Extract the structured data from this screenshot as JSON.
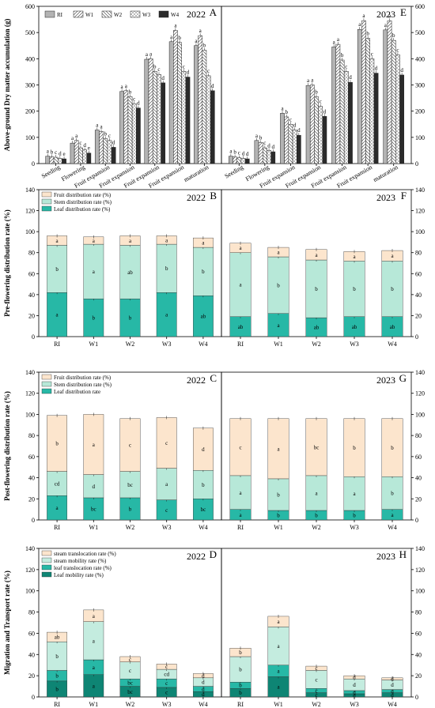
{
  "chart_data": [
    {
      "type": "bar",
      "panel": "A",
      "year": "2022",
      "ylabel": "Above-ground Dry matter accumulation (g)",
      "ylim": [
        0,
        600
      ],
      "yticks": [
        0,
        100,
        200,
        300,
        400,
        500,
        600
      ],
      "categories": [
        "Seeding",
        "Flowering",
        "Fruit expansion",
        "Fruit expansion",
        "Fruit expansion",
        "Fruit expansion",
        "maturation"
      ],
      "legend": [
        "RI",
        "W1",
        "W2",
        "W3",
        "W4"
      ],
      "legend_position": "top-left",
      "series": [
        {
          "name": "RI",
          "values": [
            28,
            78,
            128,
            275,
            398,
            465,
            450
          ],
          "letters": [
            "a",
            "a",
            "a",
            "a",
            "a",
            "a",
            "a"
          ]
        },
        {
          "name": "W1",
          "values": [
            26,
            88,
            122,
            278,
            400,
            508,
            488
          ],
          "letters": [
            "b",
            "a",
            "a",
            "a",
            "a",
            "a",
            "a"
          ]
        },
        {
          "name": "W2",
          "values": [
            24,
            60,
            95,
            255,
            352,
            462,
            432
          ],
          "letters": [
            "c",
            "c",
            "b",
            "b",
            "b",
            "b",
            "b"
          ]
        },
        {
          "name": "W3",
          "values": [
            20,
            52,
            88,
            228,
            340,
            352,
            335
          ],
          "letters": [
            "d",
            "d",
            "c",
            "c",
            "c",
            "c",
            "c"
          ]
        },
        {
          "name": "W4",
          "values": [
            18,
            40,
            62,
            212,
            308,
            330,
            278
          ],
          "letters": [
            "e",
            "e",
            "d",
            "d",
            "d",
            "d",
            "d"
          ]
        }
      ]
    },
    {
      "type": "bar",
      "panel": "E",
      "year": "2023",
      "ylim": [
        0,
        600
      ],
      "yticks": [
        0,
        100,
        200,
        300,
        400,
        500,
        600
      ],
      "categories": [
        "Seeding",
        "Flowering",
        "Fruit expansion",
        "Fruit expansion",
        "Fruit expansion",
        "Fruit expansion",
        "maturation"
      ],
      "series": [
        {
          "name": "RI",
          "values": [
            28,
            88,
            192,
            298,
            445,
            512,
            510
          ],
          "letters": [
            "a",
            "a",
            "a",
            "a",
            "a",
            "a",
            "a"
          ]
        },
        {
          "name": "W1",
          "values": [
            25,
            80,
            178,
            300,
            455,
            545,
            545
          ],
          "letters": [
            "b",
            "b",
            "b",
            "a",
            "a",
            "a",
            "a"
          ]
        },
        {
          "name": "W2",
          "values": [
            22,
            60,
            150,
            255,
            395,
            478,
            470
          ],
          "letters": [
            "c",
            "c",
            "c",
            "b",
            "b",
            "b",
            "b"
          ]
        },
        {
          "name": "W3",
          "values": [
            20,
            50,
            128,
            218,
            352,
            400,
            415
          ],
          "letters": [
            "d",
            "d",
            "d",
            "c",
            "c",
            "c",
            "c"
          ]
        },
        {
          "name": "W4",
          "values": [
            18,
            45,
            108,
            180,
            310,
            345,
            338
          ],
          "letters": [
            "d",
            "d",
            "d",
            "d",
            "d",
            "d",
            "d"
          ]
        }
      ]
    },
    {
      "type": "bar",
      "panel": "B",
      "year": "2022",
      "stacked": true,
      "ylabel": "Pre-flowering distribution rate (%)",
      "ylim": [
        0,
        140
      ],
      "yticks": [
        0,
        20,
        40,
        60,
        80,
        100,
        120,
        140
      ],
      "categories": [
        "RI",
        "W1",
        "W2",
        "W3",
        "W4"
      ],
      "legend": [
        "Fruit distribution rate (%)",
        "Stem distribution rate (%)",
        "Leaf distribution rate (%)"
      ],
      "legend_position": "top-left",
      "series": [
        {
          "name": "Leaf distribution rate (%)",
          "values": [
            42,
            36,
            36,
            42,
            39
          ],
          "letters": [
            "a",
            "b",
            "b",
            "a",
            "ab"
          ]
        },
        {
          "name": "Stem distribution rate (%)",
          "values": [
            45,
            52,
            51,
            46,
            46
          ],
          "letters": [
            "b",
            "a",
            "ab",
            "b",
            "b"
          ]
        },
        {
          "name": "Fruit distribution rate (%)",
          "values": [
            9,
            7,
            9,
            8,
            9
          ],
          "letters": [
            "a",
            "a",
            "a",
            "a",
            "a"
          ]
        }
      ]
    },
    {
      "type": "bar",
      "panel": "F",
      "year": "2023",
      "stacked": true,
      "ylim": [
        0,
        140
      ],
      "yticks": [
        0,
        20,
        40,
        60,
        80,
        100,
        120,
        140
      ],
      "categories": [
        "RI",
        "W1",
        "W2",
        "W3",
        "W4"
      ],
      "series": [
        {
          "name": "Leaf distribution rate (%)",
          "values": [
            19,
            22,
            18,
            19,
            19
          ],
          "letters": [
            "ab",
            "a",
            "ab",
            "ab",
            "ab"
          ]
        },
        {
          "name": "Stem distribution rate (%)",
          "values": [
            61,
            54,
            55,
            53,
            53
          ],
          "letters": [
            "a",
            "b",
            "b",
            "b",
            "b"
          ]
        },
        {
          "name": "Fruit distribution rate (%)",
          "values": [
            9,
            9,
            10,
            9,
            10
          ],
          "letters": [
            "a",
            "a",
            "a",
            "a",
            "a"
          ]
        }
      ]
    },
    {
      "type": "bar",
      "panel": "C",
      "year": "2022",
      "stacked": true,
      "ylabel": "Post-flowering distribution rate (%)",
      "ylim": [
        0,
        140
      ],
      "yticks": [
        0,
        20,
        40,
        60,
        80,
        100,
        120,
        140
      ],
      "categories": [
        "RI",
        "W1",
        "W2",
        "W3",
        "W4"
      ],
      "legend": [
        "Fruit distribution rate (%)",
        "Stem distribution rate (%)",
        "Leaf distribution rate"
      ],
      "legend_position": "top-left",
      "series": [
        {
          "name": "Leaf distribution rate",
          "values": [
            23,
            21,
            21,
            19,
            20
          ],
          "letters": [
            "a",
            "bc",
            "b",
            "c",
            "bc"
          ]
        },
        {
          "name": "Stem distribution rate (%)",
          "values": [
            23,
            22,
            25,
            30,
            27
          ],
          "letters": [
            "cd",
            "d",
            "bc",
            "a",
            "b"
          ]
        },
        {
          "name": "Fruit distribution rate (%)",
          "values": [
            53,
            57,
            50,
            48,
            40
          ],
          "letters": [
            "b",
            "a",
            "c",
            "c",
            "d"
          ]
        }
      ]
    },
    {
      "type": "bar",
      "panel": "G",
      "year": "2023",
      "stacked": true,
      "ylim": [
        0,
        140
      ],
      "yticks": [
        0,
        20,
        40,
        60,
        80,
        100,
        120,
        140
      ],
      "categories": [
        "RI",
        "W1",
        "W2",
        "W3",
        "W4"
      ],
      "series": [
        {
          "name": "Leaf distribution rate",
          "values": [
            10,
            9,
            9,
            9,
            10
          ],
          "letters": [
            "a",
            "b",
            "b",
            "b",
            "a"
          ]
        },
        {
          "name": "Stem distribution rate (%)",
          "values": [
            32,
            30,
            33,
            32,
            31
          ],
          "letters": [
            "a",
            "b",
            "a",
            "a",
            "b"
          ]
        },
        {
          "name": "Fruit distribution rate (%)",
          "values": [
            54,
            57,
            54,
            55,
            55
          ],
          "letters": [
            "c",
            "a",
            "bc",
            "b",
            "b"
          ]
        }
      ]
    },
    {
      "type": "bar",
      "panel": "D",
      "year": "2022",
      "stacked": true,
      "ylabel": "Migration and Transport rate (%)",
      "ylim": [
        0,
        140
      ],
      "yticks": [
        0,
        20,
        40,
        60,
        80,
        100,
        120,
        140
      ],
      "categories": [
        "RI",
        "W1",
        "W2",
        "W3",
        "W4"
      ],
      "legend": [
        "steam translocation rate (%)",
        "steam mobility rate (%)",
        "leaf translocation rate (%)",
        "Leaf mobility rate (%)"
      ],
      "legend_position": "top-left",
      "series": [
        {
          "name": "Leaf mobility rate (%)",
          "values": [
            15,
            21,
            10,
            9,
            5
          ],
          "letters": [
            "b",
            "a",
            "bc",
            "c",
            "d"
          ]
        },
        {
          "name": "leaf translocation rate (%)",
          "values": [
            10,
            14,
            7,
            8,
            5
          ],
          "letters": [
            "b",
            "a",
            "bc",
            "c",
            "d"
          ]
        },
        {
          "name": "steam mobility rate (%)",
          "values": [
            27,
            36,
            16,
            9,
            8
          ],
          "letters": [
            "b",
            "a",
            "c",
            "cd",
            "d"
          ]
        },
        {
          "name": "steam translocation rate (%)",
          "values": [
            9,
            11,
            5,
            5,
            4
          ],
          "letters": [
            "ab",
            "a",
            "c",
            "c",
            "d"
          ]
        }
      ]
    },
    {
      "type": "bar",
      "panel": "H",
      "year": "2023",
      "stacked": true,
      "ylim": [
        0,
        140
      ],
      "yticks": [
        0,
        20,
        40,
        60,
        80,
        100,
        120,
        140
      ],
      "categories": [
        "RI",
        "W1",
        "W2",
        "W3",
        "W4"
      ],
      "series": [
        {
          "name": "Leaf mobility rate (%)",
          "values": [
            8,
            19,
            4,
            3,
            4
          ],
          "letters": [
            "b",
            "a",
            "c",
            "d",
            "d"
          ]
        },
        {
          "name": "leaf translocation rate (%)",
          "values": [
            6,
            11,
            4,
            3,
            3
          ],
          "letters": [
            "b",
            "a",
            "c",
            "d",
            "d"
          ]
        },
        {
          "name": "steam mobility rate (%)",
          "values": [
            24,
            36,
            17,
            11,
            9
          ],
          "letters": [
            "b",
            "a",
            "c",
            "d",
            "d"
          ]
        },
        {
          "name": "steam translocation rate (%)",
          "values": [
            8,
            10,
            4,
            3,
            2
          ],
          "letters": [
            "b",
            "a",
            "c",
            "d",
            "d"
          ]
        }
      ]
    }
  ],
  "colors": {
    "RI": "#b3b3b3",
    "W1": "#ffffff",
    "W2": "#ffffff",
    "W3": "#ffffff",
    "W4": "#2b2b2b",
    "fruit": "#fce5cd",
    "stem": "#b7e8d8",
    "leaf": "#27b8a6",
    "steam_translocation": "#fce5cd",
    "steam_mobility": "#c4ecdf",
    "leaf_translocation": "#27b8a6",
    "leaf_mobility": "#0e8574"
  }
}
